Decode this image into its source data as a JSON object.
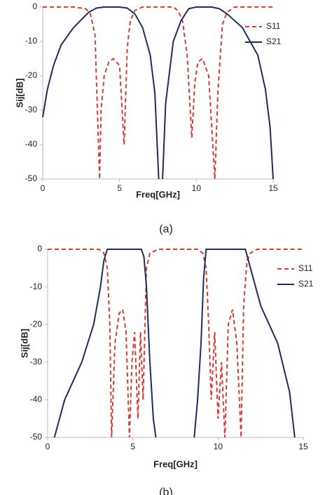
{
  "chart_data": [
    {
      "type": "line",
      "caption": "(a)",
      "xlabel": "Freq[GHz]",
      "ylabel": "Sij[dB]",
      "xlim": [
        0,
        15
      ],
      "ylim": [
        -50,
        0
      ],
      "xticks": [
        0,
        5,
        10,
        15
      ],
      "yticks": [
        0,
        -10,
        -20,
        -30,
        -40,
        -50
      ],
      "series": [
        {
          "name": "S11",
          "color": "#d0403a",
          "linestyle": "dashed",
          "x": [
            0,
            1,
            2,
            2.8,
            3.1,
            3.4,
            3.7,
            3.8,
            4.0,
            4.3,
            4.6,
            5.0,
            5.3,
            5.5,
            5.7,
            6.0,
            6.5,
            7.5,
            8.5,
            8.8,
            9.1,
            9.4,
            9.7,
            9.9,
            10.1,
            10.4,
            10.8,
            11.2,
            11.4,
            11.7,
            12.0,
            12.5,
            13.5,
            15
          ],
          "values": [
            0,
            0,
            0,
            -0.5,
            -2,
            -8,
            -50,
            -30,
            -20,
            -16,
            -15,
            -17,
            -40,
            -12,
            -4,
            -1,
            0,
            0,
            0,
            -1,
            -4,
            -14,
            -38,
            -22,
            -16,
            -15,
            -20,
            -50,
            -25,
            -5,
            -1.5,
            0,
            0,
            0
          ]
        },
        {
          "name": "S21",
          "color": "#1f2d5c",
          "linestyle": "solid",
          "x": [
            0,
            0.3,
            0.7,
            1.2,
            2,
            3,
            3.5,
            4,
            5,
            5.5,
            6,
            6.5,
            7,
            7.3,
            7.55,
            7.65,
            7.8,
            8.0,
            8.5,
            9,
            9.5,
            10,
            11,
            11.5,
            12,
            13,
            14,
            14.5,
            14.8,
            15
          ],
          "values": [
            -32,
            -24,
            -17,
            -11,
            -6,
            -1.5,
            -0.3,
            0,
            0,
            -0.3,
            -2,
            -6,
            -14,
            -25,
            -50,
            null,
            -50,
            -28,
            -10,
            -4,
            -0.5,
            0,
            0,
            -0.5,
            -2,
            -6,
            -14,
            -24,
            -35,
            -50
          ]
        }
      ]
    },
    {
      "type": "line",
      "caption": "(b)",
      "xlabel": "Freq[GHz]",
      "ylabel": "Sij[dB]",
      "xlim": [
        0,
        15
      ],
      "ylim": [
        -50,
        0
      ],
      "xticks": [
        0,
        5,
        10,
        15
      ],
      "yticks": [
        0,
        -10,
        -20,
        -30,
        -40,
        -50
      ],
      "series": [
        {
          "name": "S11",
          "color": "#d0403a",
          "linestyle": "dashed",
          "x": [
            0,
            2,
            3.0,
            3.3,
            3.5,
            3.65,
            3.75,
            3.95,
            4.2,
            4.4,
            4.6,
            4.8,
            4.95,
            5.1,
            5.3,
            5.45,
            5.6,
            5.8,
            6.0,
            6.5,
            8.8,
            9.1,
            9.3,
            9.45,
            9.6,
            9.8,
            10.0,
            10.2,
            10.4,
            10.6,
            10.85,
            11.1,
            11.35,
            11.5,
            11.7,
            11.9,
            12.3,
            15
          ],
          "values": [
            0,
            0,
            0,
            -1,
            -5,
            -20,
            -50,
            -25,
            -17,
            -16,
            -22,
            -50,
            -30,
            -22,
            -45,
            -22,
            -40,
            -5,
            -1,
            0,
            0,
            -1,
            -5,
            -20,
            -40,
            -22,
            -45,
            -30,
            -50,
            -20,
            -16,
            -25,
            -50,
            -15,
            -3,
            -1,
            0,
            0
          ]
        },
        {
          "name": "S21",
          "color": "#1f2d5c",
          "linestyle": "solid",
          "x": [
            0.4,
            1,
            2,
            2.7,
            3.1,
            3.3,
            3.5,
            4.5,
            5.5,
            5.65,
            5.8,
            6.0,
            6.2,
            6.35,
            7.5,
            8.6,
            8.8,
            9.0,
            9.15,
            9.3,
            10.5,
            11.6,
            11.9,
            12.5,
            13.5,
            14.2,
            14.5
          ],
          "values": [
            -50,
            -40,
            -30,
            -20,
            -10,
            -3,
            0,
            0,
            0,
            -2,
            -10,
            -30,
            -45,
            -50,
            null,
            -50,
            -40,
            -25,
            -8,
            0,
            0,
            0,
            -5,
            -15,
            -25,
            -38,
            -50
          ]
        }
      ]
    }
  ]
}
